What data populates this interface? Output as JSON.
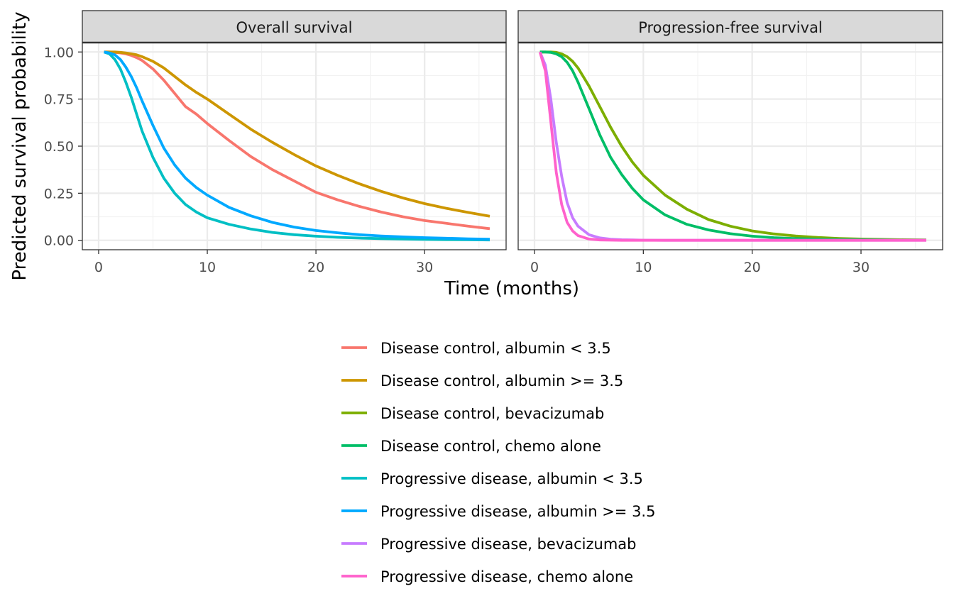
{
  "chart_data": {
    "type": "line",
    "xlabel": "Time (months)",
    "ylabel": "Predicted survival probability",
    "xlim": [
      -1.5,
      37.5
    ],
    "ylim": [
      -0.05,
      1.05
    ],
    "x_ticks": [
      0,
      10,
      20,
      30
    ],
    "y_ticks": [
      0.0,
      0.25,
      0.5,
      0.75,
      1.0
    ],
    "y_tick_labels": [
      "0.00",
      "0.25",
      "0.50",
      "0.75",
      "1.00"
    ],
    "legend_position": "bottom",
    "grid": true,
    "x": [
      0.5,
      1,
      1.5,
      2,
      2.5,
      3,
      3.5,
      4,
      5,
      6,
      7,
      8,
      9,
      10,
      12,
      14,
      16,
      18,
      20,
      22,
      24,
      26,
      28,
      30,
      32,
      34,
      36
    ],
    "panels": [
      {
        "title": "Overall survival",
        "series": [
          {
            "name": "Disease control, albumin < 3.5",
            "color": "#F8766D",
            "values": [
              1.0,
              1.0,
              0.998,
              0.995,
              0.99,
              0.982,
              0.97,
              0.955,
              0.91,
              0.85,
              0.78,
              0.71,
              0.67,
              0.62,
              0.53,
              0.445,
              0.375,
              0.315,
              0.255,
              0.215,
              0.18,
              0.15,
              0.125,
              0.105,
              0.09,
              0.075,
              0.062
            ]
          },
          {
            "name": "Disease control, albumin >= 3.5",
            "color": "#CD9600",
            "values": [
              1.0,
              1.0,
              1.0,
              0.998,
              0.995,
              0.99,
              0.985,
              0.975,
              0.95,
              0.915,
              0.87,
              0.825,
              0.785,
              0.75,
              0.67,
              0.59,
              0.52,
              0.455,
              0.395,
              0.345,
              0.3,
              0.26,
              0.225,
              0.195,
              0.17,
              0.148,
              0.128
            ]
          },
          {
            "name": "Progressive disease, albumin < 3.5",
            "color": "#00BFC4",
            "values": [
              1.0,
              0.99,
              0.96,
              0.91,
              0.84,
              0.76,
              0.67,
              0.58,
              0.44,
              0.33,
              0.25,
              0.19,
              0.15,
              0.12,
              0.085,
              0.06,
              0.042,
              0.03,
              0.022,
              0.016,
              0.012,
              0.009,
              0.007,
              0.005,
              0.004,
              0.003,
              0.002
            ]
          },
          {
            "name": "Progressive disease, albumin >= 3.5",
            "color": "#00A9FF",
            "values": [
              1.0,
              0.995,
              0.985,
              0.96,
              0.92,
              0.87,
              0.81,
              0.74,
              0.61,
              0.49,
              0.4,
              0.33,
              0.28,
              0.24,
              0.175,
              0.13,
              0.095,
              0.07,
              0.052,
              0.04,
              0.03,
              0.023,
              0.018,
              0.014,
              0.011,
              0.008,
              0.006
            ]
          }
        ]
      },
      {
        "title": "Progression-free survival",
        "series": [
          {
            "name": "Disease control, bevacizumab",
            "color": "#7CAE00",
            "values": [
              1.0,
              1.0,
              1.0,
              0.998,
              0.99,
              0.975,
              0.95,
              0.915,
              0.82,
              0.71,
              0.6,
              0.5,
              0.415,
              0.345,
              0.24,
              0.165,
              0.11,
              0.075,
              0.05,
              0.034,
              0.023,
              0.015,
              0.01,
              0.007,
              0.005,
              0.003,
              0.002
            ]
          },
          {
            "name": "Disease control, chemo alone",
            "color": "#00BE67",
            "values": [
              1.0,
              1.0,
              0.998,
              0.99,
              0.975,
              0.945,
              0.9,
              0.84,
              0.7,
              0.56,
              0.44,
              0.35,
              0.275,
              0.215,
              0.135,
              0.085,
              0.055,
              0.035,
              0.022,
              0.014,
              0.009,
              0.006,
              0.004,
              0.003,
              0.002,
              0.001,
              0.001
            ]
          },
          {
            "name": "Progressive disease, bevacizumab",
            "color": "#C77CFF",
            "values": [
              1.0,
              0.93,
              0.75,
              0.52,
              0.34,
              0.2,
              0.12,
              0.075,
              0.03,
              0.013,
              0.006,
              0.003,
              0.002,
              0.001,
              0,
              0,
              0,
              0,
              0,
              0,
              0,
              0,
              0,
              0,
              0,
              0,
              0
            ]
          },
          {
            "name": "Progressive disease, chemo alone",
            "color": "#FF61CC",
            "values": [
              1.0,
              0.9,
              0.63,
              0.36,
              0.19,
              0.095,
              0.05,
              0.025,
              0.007,
              0.002,
              0.001,
              0,
              0,
              0,
              0,
              0,
              0,
              0,
              0,
              0,
              0,
              0,
              0,
              0,
              0,
              0,
              0
            ]
          }
        ]
      }
    ],
    "legend": [
      {
        "name": "Disease control, albumin < 3.5",
        "color": "#F8766D"
      },
      {
        "name": "Disease control, albumin >= 3.5",
        "color": "#CD9600"
      },
      {
        "name": "Disease control, bevacizumab",
        "color": "#7CAE00"
      },
      {
        "name": "Disease control, chemo alone",
        "color": "#00BE67"
      },
      {
        "name": "Progressive disease, albumin < 3.5",
        "color": "#00BFC4"
      },
      {
        "name": "Progressive disease, albumin >= 3.5",
        "color": "#00A9FF"
      },
      {
        "name": "Progressive disease, bevacizumab",
        "color": "#C77CFF"
      },
      {
        "name": "Progressive disease, chemo alone",
        "color": "#FF61CC"
      }
    ]
  }
}
